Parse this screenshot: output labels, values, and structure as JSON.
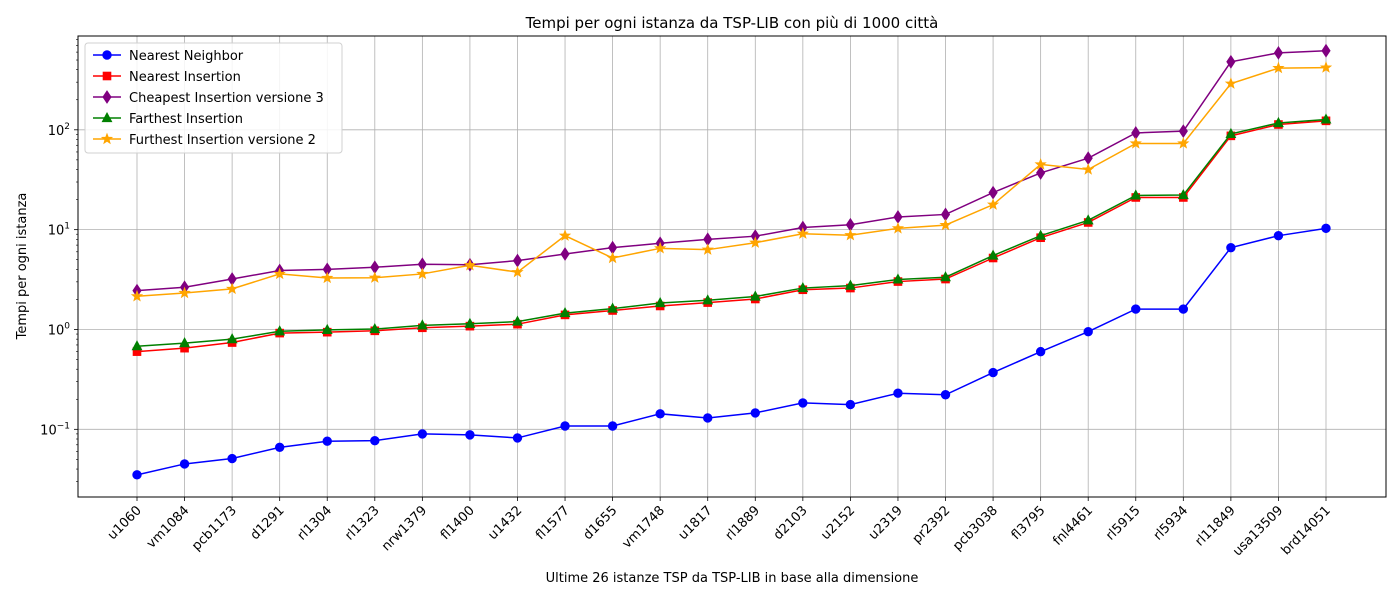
{
  "chart_data": {
    "type": "line",
    "title": "Tempi per ogni istanza da TSP-LIB con più di 1000 città",
    "xlabel": "Ultime 26 istanze TSP da TSP-LIB in base alla dimensione",
    "ylabel": "Tempi per ogni istanza",
    "yscale": "log",
    "grid": true,
    "legend_position": "top-left",
    "categories": [
      "u1060",
      "vm1084",
      "pcb1173",
      "d1291",
      "rl1304",
      "rl1323",
      "nrw1379",
      "fl1400",
      "u1432",
      "fl1577",
      "d1655",
      "vm1748",
      "u1817",
      "rl1889",
      "d2103",
      "u2152",
      "u2319",
      "pr2392",
      "pcb3038",
      "fl3795",
      "fnl4461",
      "rl5915",
      "rl5934",
      "rl11849",
      "usa13509",
      "brd14051"
    ],
    "y_ticks": [
      {
        "value": 0.1,
        "base": "10",
        "exp": "−1"
      },
      {
        "value": 1,
        "base": "10",
        "exp": "0"
      },
      {
        "value": 10,
        "base": "10",
        "exp": "1"
      },
      {
        "value": 100,
        "base": "10",
        "exp": "2"
      }
    ],
    "series": [
      {
        "name": "Nearest Neighbor",
        "color": "#0000ff",
        "marker": "circle",
        "values": [
          0.035,
          0.045,
          0.051,
          0.066,
          0.076,
          0.077,
          0.09,
          0.088,
          0.082,
          0.108,
          0.108,
          0.143,
          0.13,
          0.146,
          0.184,
          0.177,
          0.23,
          0.222,
          0.37,
          0.6,
          0.95,
          1.6,
          1.6,
          6.6,
          8.7,
          10.3
        ]
      },
      {
        "name": "Nearest Insertion",
        "color": "#ff0000",
        "marker": "square",
        "values": [
          0.6,
          0.65,
          0.74,
          0.92,
          0.94,
          0.97,
          1.04,
          1.08,
          1.13,
          1.4,
          1.55,
          1.72,
          1.86,
          2.02,
          2.5,
          2.6,
          3.02,
          3.2,
          5.2,
          8.3,
          11.8,
          21,
          21,
          87,
          113,
          123
        ]
      },
      {
        "name": "Cheapest Insertion versione 3",
        "color": "#800080",
        "marker": "diamond",
        "values": [
          2.45,
          2.65,
          3.2,
          3.9,
          4.0,
          4.2,
          4.5,
          4.45,
          4.9,
          5.7,
          6.6,
          7.3,
          8.0,
          8.6,
          10.5,
          11.2,
          13.4,
          14.2,
          23.5,
          37,
          52,
          93,
          97,
          480,
          590,
          620
        ]
      },
      {
        "name": "Farthest Insertion",
        "color": "#008000",
        "marker": "triangle",
        "values": [
          0.68,
          0.73,
          0.8,
          0.96,
          0.99,
          1.01,
          1.1,
          1.14,
          1.2,
          1.46,
          1.62,
          1.84,
          1.96,
          2.14,
          2.6,
          2.75,
          3.17,
          3.34,
          5.5,
          8.7,
          12.4,
          22,
          22.2,
          91,
          117,
          127
        ]
      },
      {
        "name": "Furthest Insertion versione 2",
        "color": "#ffa500",
        "marker": "star",
        "values": [
          2.15,
          2.32,
          2.55,
          3.6,
          3.28,
          3.3,
          3.6,
          4.4,
          3.75,
          8.7,
          5.2,
          6.5,
          6.3,
          7.4,
          9.1,
          8.8,
          10.3,
          11.1,
          17.8,
          45,
          40,
          73,
          73,
          290,
          415,
          420
        ]
      }
    ]
  }
}
